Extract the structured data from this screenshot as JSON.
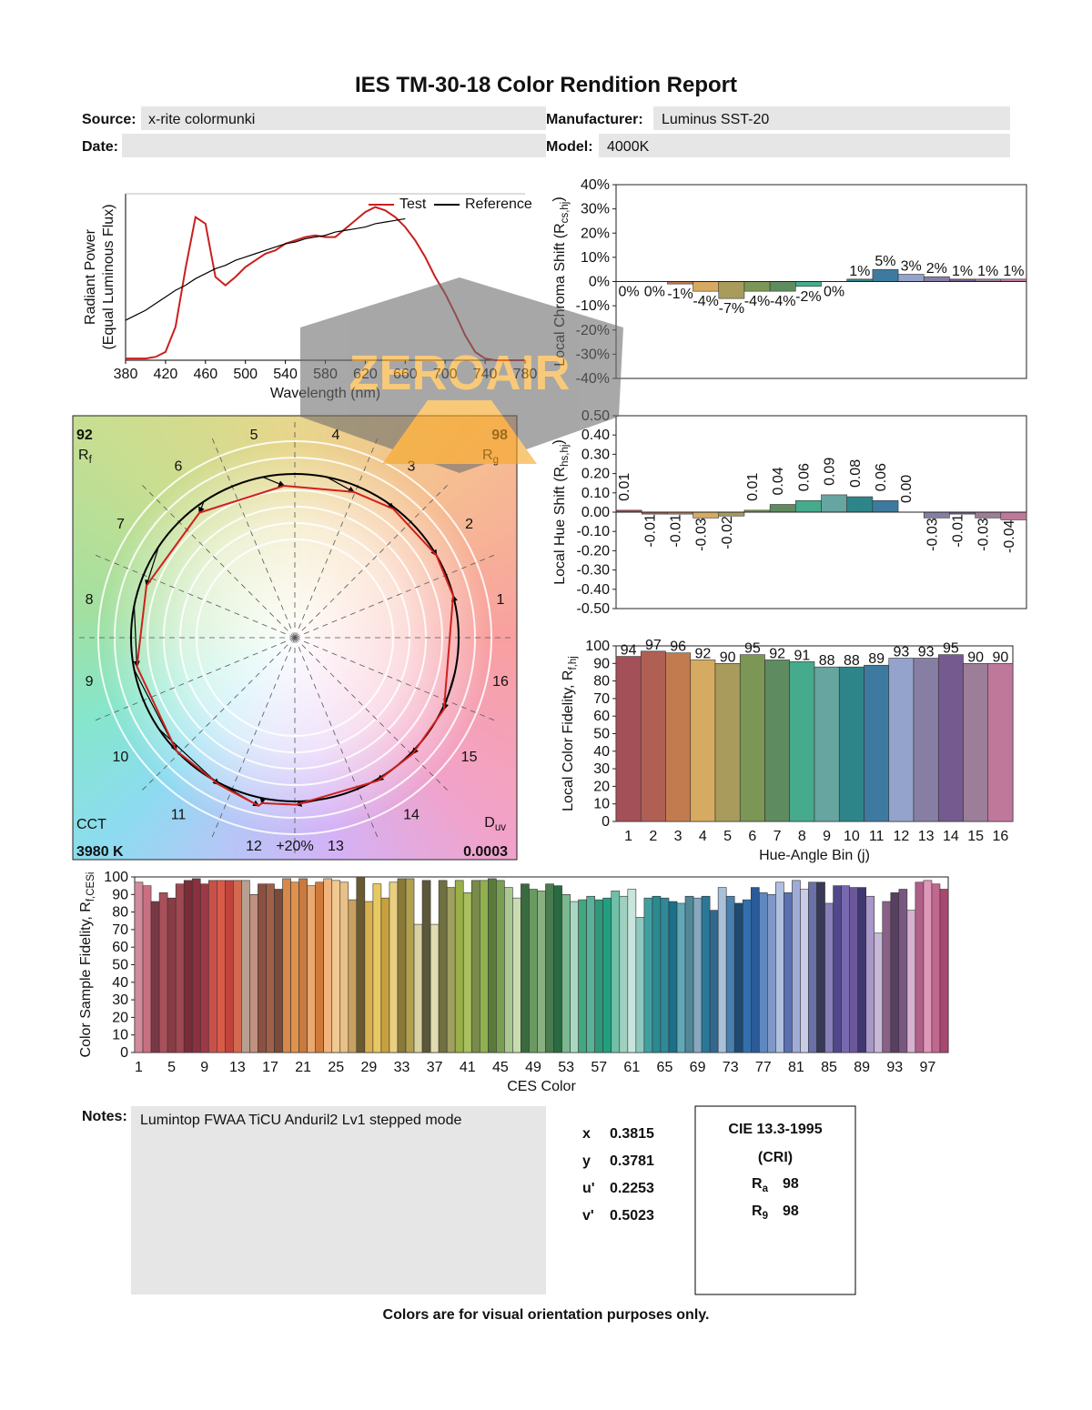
{
  "title": "IES TM-30-18 Color Rendition Report",
  "header": {
    "source_label": "Source:",
    "source": "x-rite colormunki",
    "manufacturer_label": "Manufacturer:",
    "manufacturer": "Luminus SST-20",
    "date_label": "Date:",
    "model_label": "Model:",
    "model": "4000K"
  },
  "watermark": "ZEROAIR",
  "bin_colors": [
    "#a35059",
    "#b05f55",
    "#c27b4f",
    "#d6aa60",
    "#a89b5b",
    "#7c9655",
    "#5e8b5f",
    "#45ab8c",
    "#66a5a0",
    "#2e8589",
    "#3e7aa0",
    "#94a3cc",
    "#877fa3",
    "#755a8f",
    "#9c7e98",
    "#c0789a"
  ],
  "chart_data": [
    {
      "type": "line",
      "x_label": "Wavelength (nm)",
      "y_label": [
        "Radiant Power"
      ],
      "y_sublabel": "(Equal Luminous Flux)",
      "x": [
        380,
        390,
        400,
        410,
        420,
        430,
        440,
        450,
        460,
        470,
        480,
        490,
        500,
        510,
        520,
        530,
        540,
        550,
        560,
        570,
        580,
        590,
        600,
        610,
        620,
        630,
        640,
        650,
        660,
        670,
        680,
        690,
        700,
        710,
        720,
        730,
        740,
        750,
        760,
        770,
        780
      ],
      "xlim": [
        380,
        780
      ],
      "xticks": [
        380,
        420,
        460,
        500,
        540,
        580,
        620,
        660,
        700,
        740,
        780
      ],
      "ylim": [
        0,
        1
      ],
      "legend": "upper right",
      "series": [
        {
          "name": "Test",
          "color": "#c8201e",
          "values": [
            0.01,
            0.01,
            0.01,
            0.02,
            0.05,
            0.2,
            0.55,
            0.86,
            0.82,
            0.5,
            0.45,
            0.5,
            0.56,
            0.6,
            0.64,
            0.66,
            0.7,
            0.72,
            0.74,
            0.75,
            0.74,
            0.74,
            0.79,
            0.84,
            0.89,
            0.92,
            0.9,
            0.86,
            0.8,
            0.72,
            0.62,
            0.5,
            0.4,
            0.28,
            0.15,
            0.05,
            0.01,
            0,
            0,
            0,
            0
          ]
        },
        {
          "name": "Reference",
          "color": "#000000",
          "values": [
            0.24,
            0.27,
            0.3,
            0.34,
            0.38,
            0.42,
            0.45,
            0.49,
            0.52,
            0.55,
            0.57,
            0.6,
            0.62,
            0.64,
            0.66,
            0.68,
            0.7,
            0.71,
            0.73,
            0.74,
            0.75,
            0.77,
            0.78,
            0.79,
            0.8,
            0.82,
            0.83,
            0.84,
            0.85,
            null,
            null,
            null,
            null,
            null,
            null,
            null,
            null,
            null,
            null,
            null,
            null
          ]
        }
      ]
    },
    {
      "type": "vector",
      "rf": 92,
      "rf_label": [
        "R",
        "f"
      ],
      "rg": 98,
      "rg_label": [
        "R",
        "g"
      ],
      "cct_label": "CCT",
      "cct": "3980 K",
      "duv_label": [
        "D",
        "uv"
      ],
      "duv": "0.0003",
      "scale_label": "+20%",
      "bin_labels": [
        1,
        2,
        3,
        4,
        5,
        6,
        7,
        8,
        9,
        10,
        11,
        12,
        13,
        14,
        15,
        16
      ],
      "test_color": "#d0201c",
      "reference_color": "#000000"
    },
    {
      "type": "bar",
      "y_label": [
        "Local Chroma Shift (R",
        "cs,hj",
        ")"
      ],
      "ylim": [
        -40,
        40
      ],
      "yticks": [
        {
          "value": 40,
          "label": "40%"
        },
        {
          "value": 30,
          "label": "30%"
        },
        {
          "value": 20,
          "label": "20%"
        },
        {
          "value": 10,
          "label": "10%"
        },
        {
          "value": 0,
          "label": "0%"
        },
        {
          "value": -10,
          "label": "-10%"
        },
        {
          "value": -20,
          "label": "-20%"
        },
        {
          "value": -30,
          "label": "-30%"
        },
        {
          "value": -40,
          "label": "-40%"
        }
      ],
      "values": [
        0,
        0,
        -1,
        -4,
        -7,
        -4,
        -4,
        -2,
        0,
        1,
        5,
        3,
        2,
        1,
        1,
        1
      ],
      "value_labels": [
        "0%",
        "0%",
        "-1%",
        "-4%",
        "-7%",
        "-4%",
        "-4%",
        "-2%",
        "0%",
        "1%",
        "5%",
        "3%",
        "2%",
        "1%",
        "1%",
        "1%"
      ]
    },
    {
      "type": "bar",
      "y_label": [
        "Local Hue Shift (R",
        "hs,hj",
        ")"
      ],
      "ylim": [
        -0.5,
        0.5
      ],
      "yticks": [
        {
          "value": 0.5,
          "label": "0.50"
        },
        {
          "value": 0.4,
          "label": "0.40"
        },
        {
          "value": 0.3,
          "label": "0.30"
        },
        {
          "value": 0.2,
          "label": "0.20"
        },
        {
          "value": 0.1,
          "label": "0.10"
        },
        {
          "value": 0,
          "label": "0.00"
        },
        {
          "value": -0.1,
          "label": "-0.10"
        },
        {
          "value": -0.2,
          "label": "-0.20"
        },
        {
          "value": -0.3,
          "label": "-0.30"
        },
        {
          "value": -0.4,
          "label": "-0.40"
        },
        {
          "value": -0.5,
          "label": "-0.50"
        }
      ],
      "values": [
        0.01,
        -0.01,
        -0.01,
        -0.03,
        -0.02,
        0.01,
        0.04,
        0.06,
        0.09,
        0.08,
        0.06,
        0,
        -0.03,
        -0.01,
        -0.03,
        -0.04
      ],
      "value_labels": [
        "0.01",
        "-0.01",
        "-0.01",
        "-0.03",
        "-0.02",
        "0.01",
        "0.04",
        "0.06",
        "0.09",
        "0.08",
        "0.06",
        "0.00",
        "-0.03",
        "-0.01",
        "-0.03",
        "-0.04"
      ]
    },
    {
      "type": "bar",
      "x_label": "Hue-Angle Bin (j)",
      "y_label": [
        "Local Color Fidelity, R",
        "f,hj"
      ],
      "ylim": [
        0,
        100
      ],
      "yticks": [
        0,
        10,
        20,
        30,
        40,
        50,
        60,
        70,
        80,
        90,
        100
      ],
      "data_labels": true,
      "categories": [
        1,
        2,
        3,
        4,
        5,
        6,
        7,
        8,
        9,
        10,
        11,
        12,
        13,
        14,
        15,
        16
      ],
      "values": [
        94,
        97,
        96,
        92,
        90,
        95,
        92,
        91,
        88,
        88,
        89,
        93,
        93,
        95,
        90,
        90
      ]
    },
    {
      "type": "bar",
      "x_label": "CES Color",
      "y_label": [
        "Color Sample Fidelity, R",
        "f,CESi"
      ],
      "ylim": [
        0,
        100
      ],
      "yticks": [
        0,
        10,
        20,
        30,
        40,
        50,
        60,
        70,
        80,
        90,
        100
      ],
      "categories": [
        1,
        null,
        null,
        null,
        5,
        null,
        null,
        null,
        9,
        null,
        null,
        null,
        13,
        null,
        null,
        null,
        17,
        null,
        null,
        null,
        21,
        null,
        null,
        null,
        25,
        null,
        null,
        null,
        29,
        null,
        null,
        null,
        33,
        null,
        null,
        null,
        37,
        null,
        null,
        null,
        41,
        null,
        null,
        null,
        45,
        null,
        null,
        null,
        49,
        null,
        null,
        null,
        53,
        null,
        null,
        null,
        57,
        null,
        null,
        null,
        61,
        null,
        null,
        null,
        65,
        null,
        null,
        null,
        69,
        null,
        null,
        null,
        73,
        null,
        null,
        null,
        77,
        null,
        null,
        null,
        81,
        null,
        null,
        null,
        85,
        null,
        null,
        null,
        89,
        null,
        null,
        null,
        93,
        null,
        null,
        null,
        97,
        null,
        null
      ],
      "values": [
        97,
        95,
        86,
        91,
        88,
        96,
        98,
        99,
        96,
        98,
        98,
        98,
        98,
        98,
        90,
        96,
        96,
        93,
        99,
        97,
        99,
        95,
        97,
        99,
        98,
        97,
        87,
        100,
        86,
        96,
        88,
        97,
        99,
        99,
        73,
        98,
        73,
        98,
        94,
        98,
        91,
        98,
        98,
        99,
        98,
        94,
        88,
        96,
        93,
        92,
        96,
        95,
        90,
        86,
        87,
        89,
        87,
        88,
        92,
        89,
        93,
        77,
        88,
        89,
        88,
        86,
        85,
        89,
        88,
        89,
        81,
        94,
        89,
        85,
        87,
        94,
        91,
        90,
        97,
        91,
        98,
        93,
        97,
        97,
        85,
        95,
        95,
        94,
        94,
        89,
        68,
        86,
        91,
        93,
        81,
        97,
        98,
        96,
        93
      ],
      "colors": [
        "#d48a9a",
        "#c87081",
        "#7a3845",
        "#a8505a",
        "#8a3c44",
        "#a04850",
        "#7a2c38",
        "#8c3040",
        "#9a3a46",
        "#c8504a",
        "#d85a48",
        "#c0443c",
        "#d26a50",
        "#b8a090",
        "#c09080",
        "#8a5040",
        "#a06048",
        "#7a4a3a",
        "#d88848",
        "#e0924c",
        "#c87a40",
        "#e8a870",
        "#d07a3a",
        "#f0b47c",
        "#f0c890",
        "#e8c088",
        "#c8a060",
        "#6a5a30",
        "#d8b050",
        "#e8c860",
        "#c8a040",
        "#e8d080",
        "#8a7a3a",
        "#b0a050",
        "#d8d0a0",
        "#5a5838",
        "#e0dcb0",
        "#707040",
        "#a0a060",
        "#98b048",
        "#a8c060",
        "#7a8a4a",
        "#90b050",
        "#5a7a3a",
        "#78a050",
        "#a8c890",
        "#c8dcb0",
        "#3a6a40",
        "#6a9a60",
        "#88b080",
        "#4a7a50",
        "#2a6a40",
        "#7ab890",
        "#a8d8c0",
        "#40a880",
        "#5ab098",
        "#30987a",
        "#20a080",
        "#70c0a8",
        "#a0d0c0",
        "#c8e4dc",
        "#90c8c0",
        "#40a0a0",
        "#2a8a90",
        "#308898",
        "#1a7088",
        "#60a8b8",
        "#508898",
        "#88a8c0",
        "#2a7898",
        "#306890",
        "#a8c0d8",
        "#4880b0",
        "#204a70",
        "#3070b0",
        "#2a5a98",
        "#6088c0",
        "#8098c8",
        "#b0c0e0",
        "#5a70b0",
        "#a0acd8",
        "#c8cce8",
        "#6a70a8",
        "#383858",
        "#8880b8",
        "#50488a",
        "#7868b0",
        "#6a5898",
        "#403870",
        "#a898c8",
        "#c8b8d8",
        "#8a6088",
        "#584060",
        "#785880",
        "#d8b0d0",
        "#b06088",
        "#e098b8",
        "#c06890",
        "#a84870"
      ]
    }
  ],
  "notes_label": "Notes:",
  "notes": "Lumintop FWAA TiCU Anduril2 Lv1 stepped mode",
  "chromaticity": [
    {
      "label": "x",
      "value": 0.3815
    },
    {
      "label": "y",
      "value": 0.3781
    },
    {
      "label": "u'",
      "value": 0.2253
    },
    {
      "label": "v'",
      "value": 0.5023
    }
  ],
  "cri": {
    "title": "CIE 13.3-1995",
    "subtitle": "(CRI)",
    "items": [
      {
        "label": [
          "R",
          "a"
        ],
        "value": 98
      },
      {
        "label": [
          "R",
          "9"
        ],
        "value": 98
      }
    ]
  },
  "footer": "Colors are for visual orientation purposes only."
}
